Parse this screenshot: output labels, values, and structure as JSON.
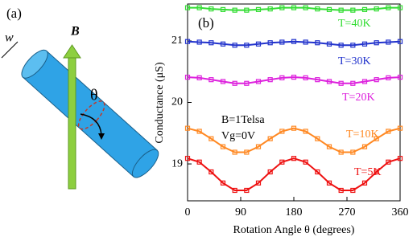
{
  "panel_a": {
    "label": "(a)",
    "width_label": "w",
    "field_label": "B",
    "angle_label": "θ"
  },
  "chart_data": {
    "type": "line",
    "panel_label": "(b)",
    "x_label": "Rotation Angle θ (degrees)",
    "y_label": "Conductance (μS)",
    "annotations": [
      "B=1Telsa",
      "Vg=0V"
    ],
    "x": [
      0,
      20,
      40,
      60,
      80,
      100,
      120,
      140,
      160,
      180,
      200,
      220,
      240,
      260,
      280,
      300,
      320,
      340,
      360
    ],
    "xlim": [
      0,
      360
    ],
    "xticks": [
      0,
      90,
      180,
      270,
      360
    ],
    "ylim": [
      18.4,
      21.6
    ],
    "yticks": [
      19,
      20,
      21
    ],
    "series": [
      {
        "name": "T=40K",
        "color": "#33dd33",
        "values": [
          21.54,
          21.54,
          21.52,
          21.51,
          21.5,
          21.5,
          21.51,
          21.52,
          21.54,
          21.54,
          21.54,
          21.52,
          21.51,
          21.5,
          21.5,
          21.51,
          21.52,
          21.54,
          21.54
        ]
      },
      {
        "name": "T=30K",
        "color": "#2233cc",
        "values": [
          20.99,
          20.98,
          20.97,
          20.95,
          20.93,
          20.93,
          20.95,
          20.97,
          20.98,
          20.99,
          20.98,
          20.97,
          20.95,
          20.93,
          20.93,
          20.95,
          20.97,
          20.98,
          20.99
        ]
      },
      {
        "name": "T=20K",
        "color": "#dd22dd",
        "values": [
          20.41,
          20.4,
          20.37,
          20.34,
          20.31,
          20.31,
          20.34,
          20.37,
          20.4,
          20.41,
          20.4,
          20.37,
          20.34,
          20.31,
          20.31,
          20.34,
          20.37,
          20.4,
          20.41
        ]
      },
      {
        "name": "T=10K",
        "color": "#ff8822",
        "values": [
          19.58,
          19.53,
          19.41,
          19.28,
          19.19,
          19.19,
          19.28,
          19.41,
          19.53,
          19.58,
          19.53,
          19.41,
          19.28,
          19.19,
          19.19,
          19.28,
          19.41,
          19.53,
          19.58
        ]
      },
      {
        "name": "T=5K",
        "color": "#ee1111",
        "values": [
          19.09,
          19.03,
          18.87,
          18.69,
          18.57,
          18.57,
          18.69,
          18.87,
          19.03,
          19.09,
          19.03,
          18.87,
          18.69,
          18.57,
          18.57,
          18.69,
          18.87,
          19.03,
          19.09
        ]
      }
    ]
  }
}
